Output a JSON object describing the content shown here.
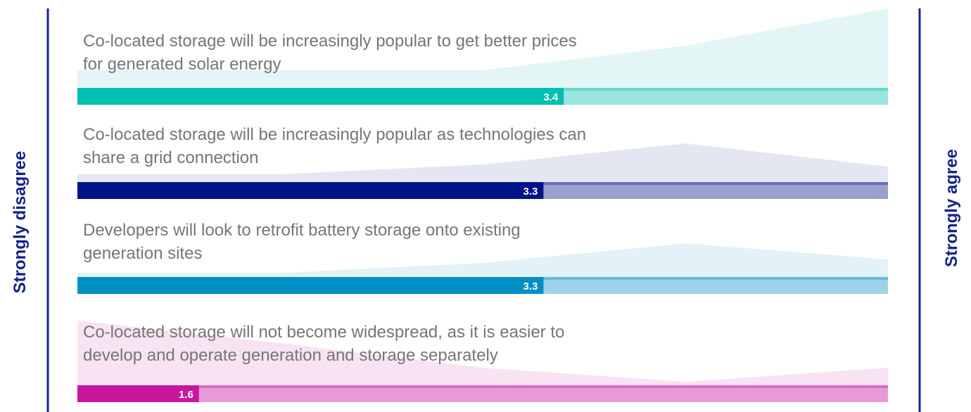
{
  "chart_data": {
    "type": "bar",
    "orientation": "horizontal",
    "left_label": "Strongly disagree",
    "right_label": "Strongly agree",
    "categories": [
      [
        "Co-located storage will be increasingly popular to get better prices",
        "for generated solar energy"
      ],
      [
        "Co-located storage will be increasingly popular as technologies can",
        "share a grid connection"
      ],
      [
        "Developers will look to retrofit battery storage onto existing",
        "generation sites"
      ],
      [
        "Co-located storage will not become widespread, as it is easier to",
        "develop and operate generation and storage separately"
      ]
    ],
    "values": [
      3.4,
      3.3,
      3.3,
      1.6
    ],
    "xlim": [
      1,
      5
    ],
    "colors": [
      "#00bfae",
      "#001489",
      "#008fc4",
      "#c7179e"
    ],
    "track_colors": [
      "#99e6de",
      "#9ba0cf",
      "#9dd3e6",
      "#e79ad8"
    ],
    "area_colors": [
      "#e3f5f5",
      "#e4e6f2",
      "#e3f2f7",
      "#f8e3f2"
    ],
    "distributions": [
      [
        25,
        25,
        25,
        60,
        113
      ],
      [
        11,
        11,
        25,
        55,
        22
      ],
      [
        6,
        6,
        20,
        48,
        25
      ],
      [
        92,
        60,
        25,
        5,
        25
      ]
    ],
    "distribution_ylim": [
      0,
      120
    ],
    "side_label_color": "#14248a"
  }
}
